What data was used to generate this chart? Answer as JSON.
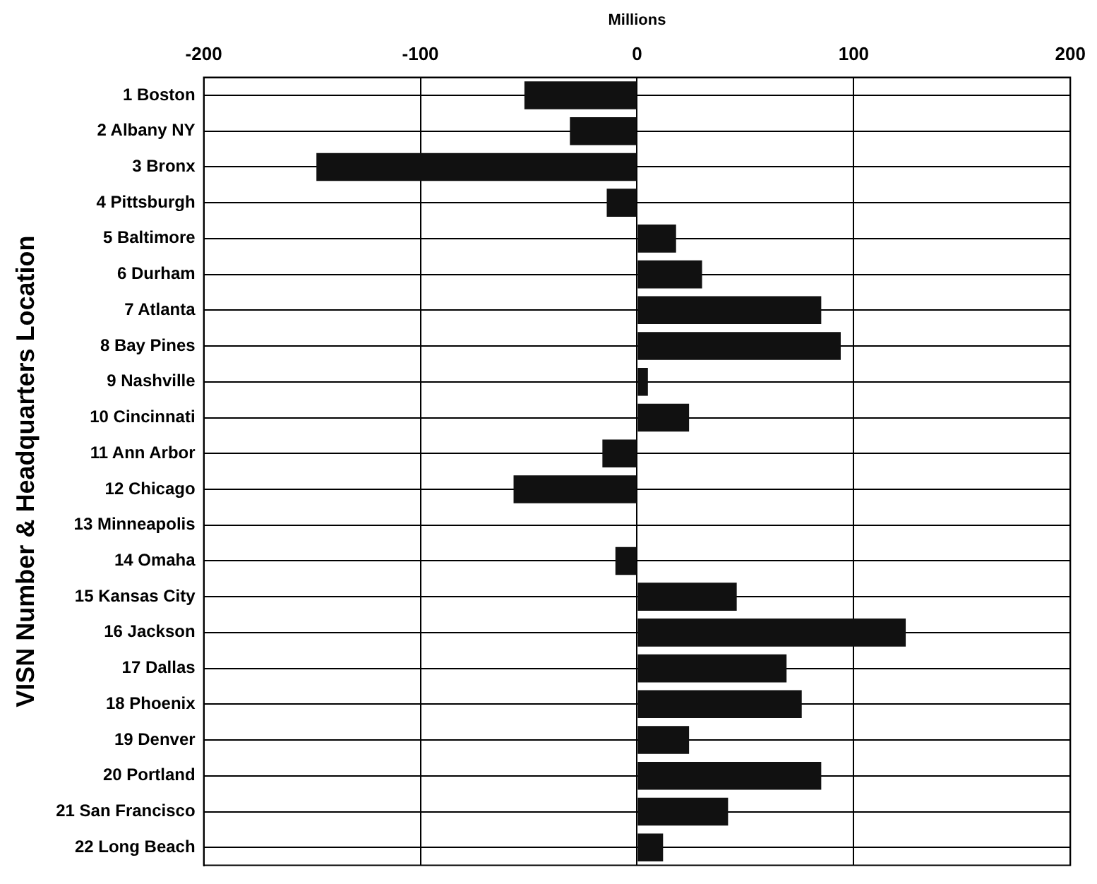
{
  "chart_data": {
    "type": "bar",
    "orientation": "horizontal",
    "xlabel": "Millions",
    "ylabel": "VISN Number & Headquarters Location",
    "categories": [
      "1 Boston",
      "2 Albany NY",
      "3 Bronx",
      "4 Pittsburgh",
      "5 Baltimore",
      "6 Durham",
      "7 Atlanta",
      "8 Bay Pines",
      "9 Nashville",
      "10 Cincinnati",
      "11 Ann Arbor",
      "12 Chicago",
      "13 Minneapolis",
      "14 Omaha",
      "15 Kansas City",
      "16 Jackson",
      "17 Dallas",
      "18 Phoenix",
      "19 Denver",
      "20 Portland",
      "21 San Francisco",
      "22 Long Beach"
    ],
    "values": [
      -52,
      -31,
      -148,
      -14,
      18,
      30,
      85,
      94,
      5,
      24,
      -16,
      -57,
      0,
      -10,
      46,
      124,
      69,
      76,
      24,
      85,
      42,
      12
    ],
    "color": "#111111",
    "xlim": [
      -200,
      200
    ],
    "xticks": [
      -200,
      -100,
      0,
      100,
      200
    ],
    "grid": true
  }
}
